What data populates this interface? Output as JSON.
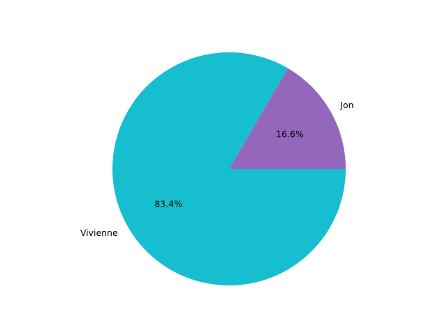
{
  "chart_data": {
    "type": "pie",
    "categories": [
      "Jon",
      "Vivienne"
    ],
    "values": [
      16.6,
      83.4
    ],
    "colors": [
      "#9467bd",
      "#17becf"
    ],
    "autopct_labels": [
      "16.6%",
      "83.4%"
    ],
    "start_angle_deg": 0,
    "direction": "counterclockwise"
  }
}
